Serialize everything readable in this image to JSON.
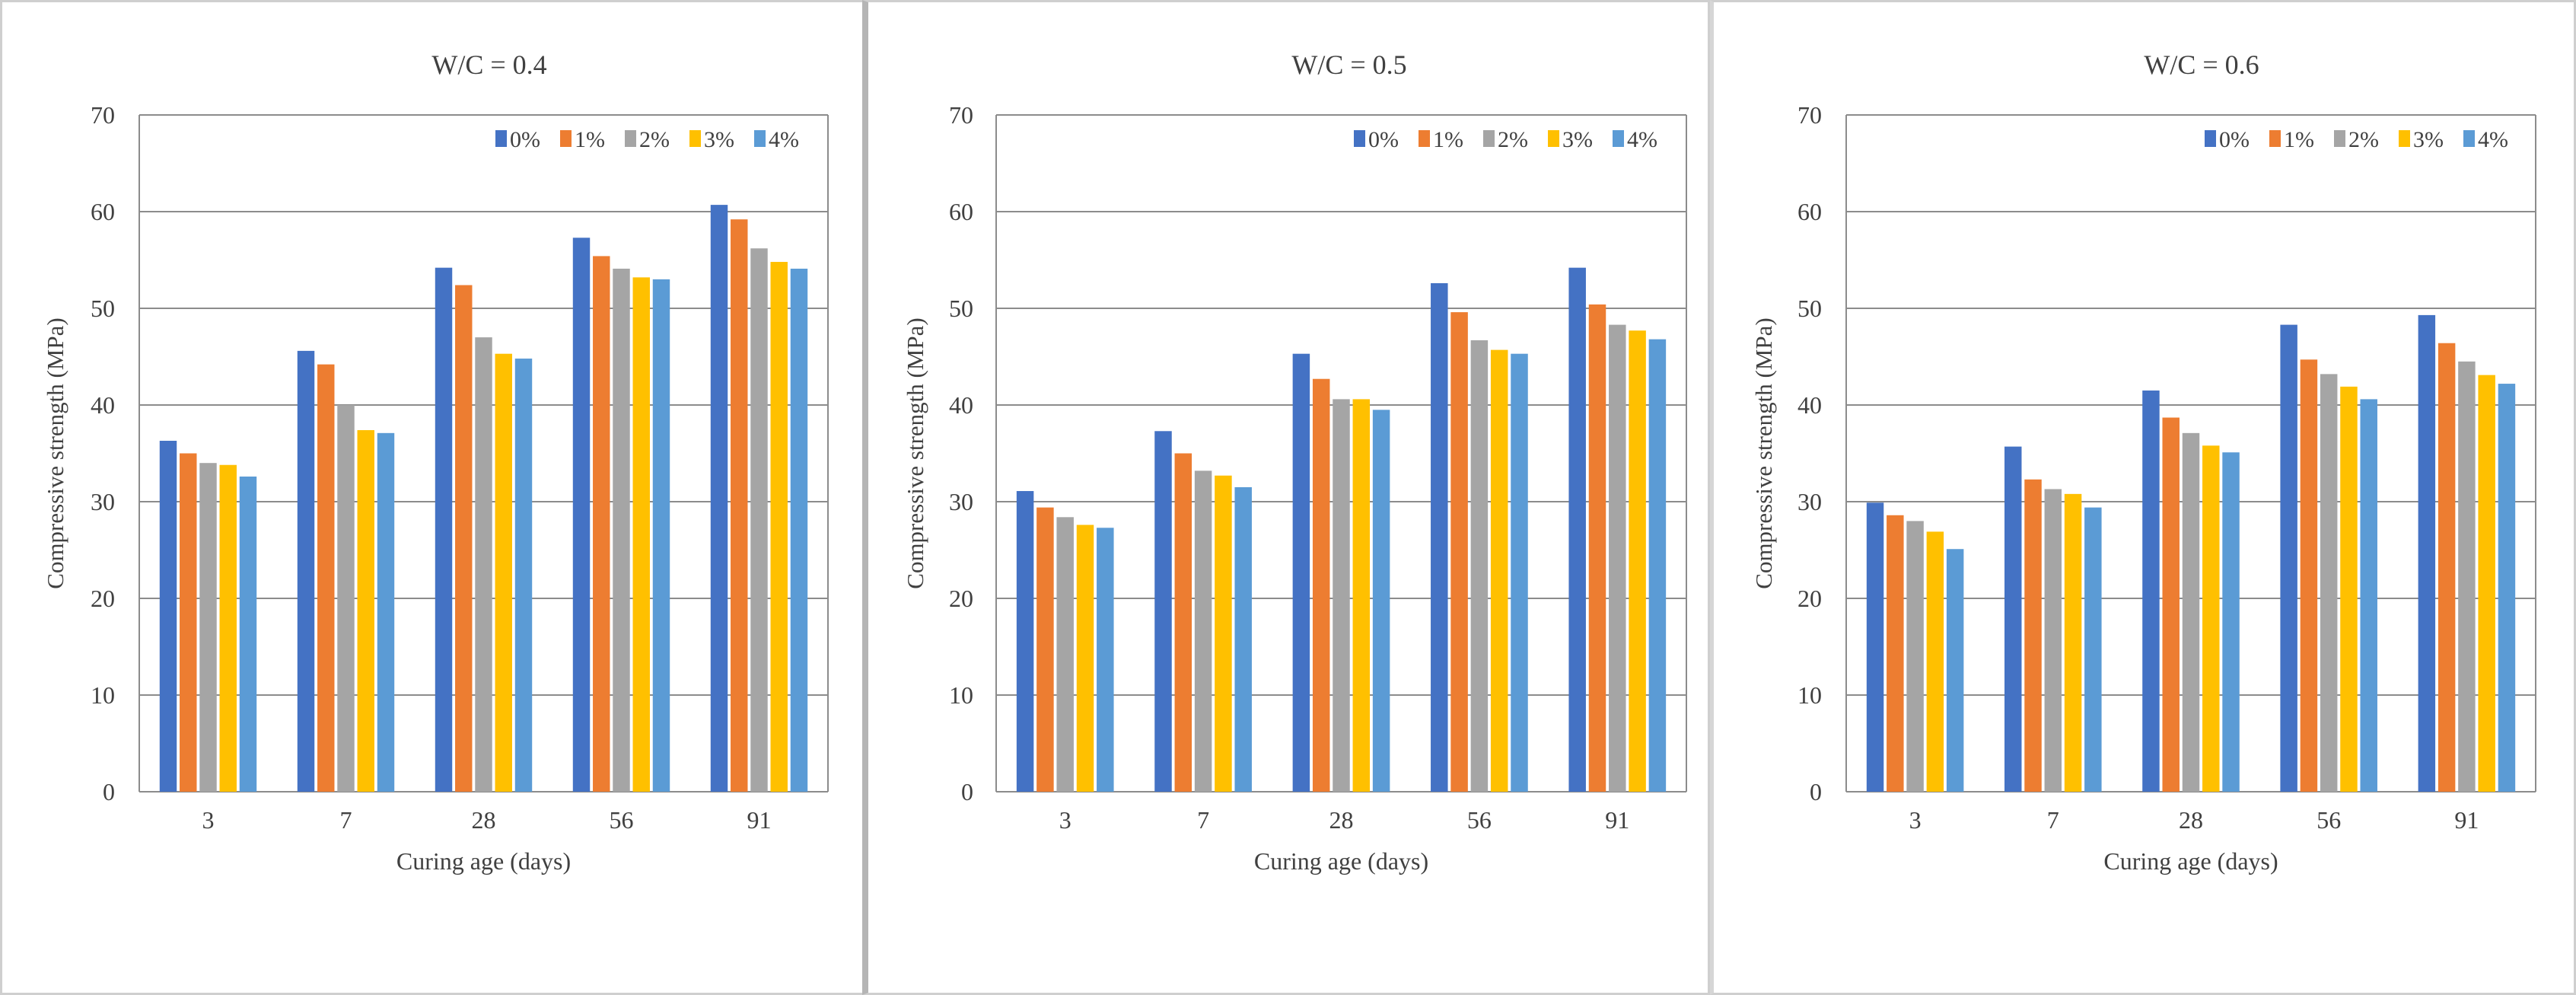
{
  "chart_data": [
    {
      "type": "bar",
      "title": "W/C = 0.4",
      "xlabel": "Curing age (days)",
      "ylabel": "Compressive strength (MPa)",
      "ylim": [
        0,
        70
      ],
      "yticks": [
        "0",
        "10",
        "20",
        "30",
        "40",
        "50",
        "60",
        "70"
      ],
      "categories": [
        "3",
        "7",
        "28",
        "56",
        "91"
      ],
      "grid": true,
      "legend_position": "top-right",
      "series": [
        {
          "name": "0%",
          "color": "#4472C4",
          "values": [
            36.3,
            45.6,
            54.2,
            57.3,
            60.7
          ]
        },
        {
          "name": "1%",
          "color": "#ED7D31",
          "values": [
            35.0,
            44.2,
            52.4,
            55.4,
            59.2
          ]
        },
        {
          "name": "2%",
          "color": "#A5A5A5",
          "values": [
            34.0,
            40.0,
            47.0,
            54.1,
            56.2
          ]
        },
        {
          "name": "3%",
          "color": "#FFC000",
          "values": [
            33.8,
            37.4,
            45.3,
            53.2,
            54.8
          ]
        },
        {
          "name": "4%",
          "color": "#5B9BD5",
          "values": [
            32.6,
            37.1,
            44.8,
            53.0,
            54.1
          ]
        }
      ]
    },
    {
      "type": "bar",
      "title": "W/C = 0.5",
      "xlabel": "Curing age (days)",
      "ylabel": "Compressive strength (MPa)",
      "ylim": [
        0,
        70
      ],
      "yticks": [
        "0",
        "10",
        "20",
        "30",
        "40",
        "50",
        "60",
        "70"
      ],
      "categories": [
        "3",
        "7",
        "28",
        "56",
        "91"
      ],
      "grid": true,
      "legend_position": "top-right",
      "series": [
        {
          "name": "0%",
          "color": "#4472C4",
          "values": [
            31.1,
            37.3,
            45.3,
            52.6,
            54.2
          ]
        },
        {
          "name": "1%",
          "color": "#ED7D31",
          "values": [
            29.4,
            35.0,
            42.7,
            49.6,
            50.4
          ]
        },
        {
          "name": "2%",
          "color": "#A5A5A5",
          "values": [
            28.4,
            33.2,
            40.6,
            46.7,
            48.3
          ]
        },
        {
          "name": "3%",
          "color": "#FFC000",
          "values": [
            27.6,
            32.7,
            40.6,
            45.7,
            47.7
          ]
        },
        {
          "name": "4%",
          "color": "#5B9BD5",
          "values": [
            27.3,
            31.5,
            39.5,
            45.3,
            46.8
          ]
        }
      ]
    },
    {
      "type": "bar",
      "title": "W/C = 0.6",
      "xlabel": "Curing age (days)",
      "ylabel": "Compressive strength (MPa)",
      "ylim": [
        0,
        70
      ],
      "yticks": [
        "0",
        "10",
        "20",
        "30",
        "40",
        "50",
        "60",
        "70"
      ],
      "categories": [
        "3",
        "7",
        "28",
        "56",
        "91"
      ],
      "grid": true,
      "legend_position": "top-right",
      "series": [
        {
          "name": "0%",
          "color": "#4472C4",
          "values": [
            29.9,
            35.7,
            41.5,
            48.3,
            49.3
          ]
        },
        {
          "name": "1%",
          "color": "#ED7D31",
          "values": [
            28.6,
            32.3,
            38.7,
            44.7,
            46.4
          ]
        },
        {
          "name": "2%",
          "color": "#A5A5A5",
          "values": [
            28.0,
            31.3,
            37.1,
            43.2,
            44.5
          ]
        },
        {
          "name": "3%",
          "color": "#FFC000",
          "values": [
            26.9,
            30.8,
            35.8,
            41.9,
            43.1
          ]
        },
        {
          "name": "4%",
          "color": "#5B9BD5",
          "values": [
            25.1,
            29.4,
            35.1,
            40.6,
            42.2
          ]
        }
      ]
    }
  ]
}
